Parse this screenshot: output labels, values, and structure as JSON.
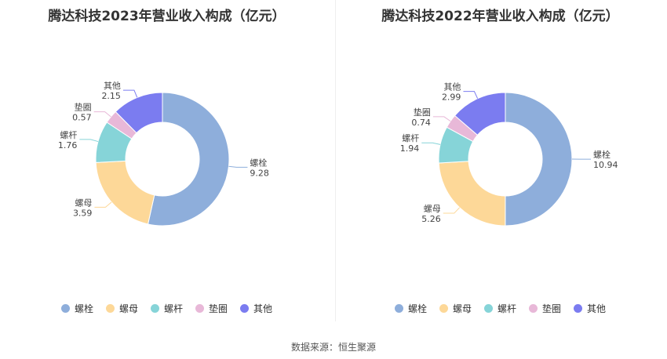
{
  "source": "数据来源：恒生聚源",
  "chart_data": [
    {
      "type": "pie",
      "variant": "donut",
      "title": "腾达科技2023年营业收入构成（亿元）",
      "categories": [
        "螺栓",
        "螺母",
        "螺杆",
        "垫圈",
        "其他"
      ],
      "values": [
        9.28,
        3.59,
        1.76,
        0.57,
        2.15
      ],
      "value_labels": [
        "9.28",
        "3.59",
        "1.76",
        "0.57",
        "2.15"
      ],
      "colors": [
        "#8eaedb",
        "#fdd898",
        "#86d4d8",
        "#e8b8d8",
        "#7b7cf0"
      ],
      "legend": "bottom"
    },
    {
      "type": "pie",
      "variant": "donut",
      "title": "腾达科技2022年营业收入构成（亿元）",
      "categories": [
        "螺栓",
        "螺母",
        "螺杆",
        "垫圈",
        "其他"
      ],
      "values": [
        10.94,
        5.26,
        1.94,
        0.74,
        2.99
      ],
      "value_labels": [
        "10.94",
        "5.26",
        "1.94",
        "0.74",
        "2.99"
      ],
      "colors": [
        "#8eaedb",
        "#fdd898",
        "#86d4d8",
        "#e8b8d8",
        "#7b7cf0"
      ],
      "legend": "bottom"
    }
  ]
}
